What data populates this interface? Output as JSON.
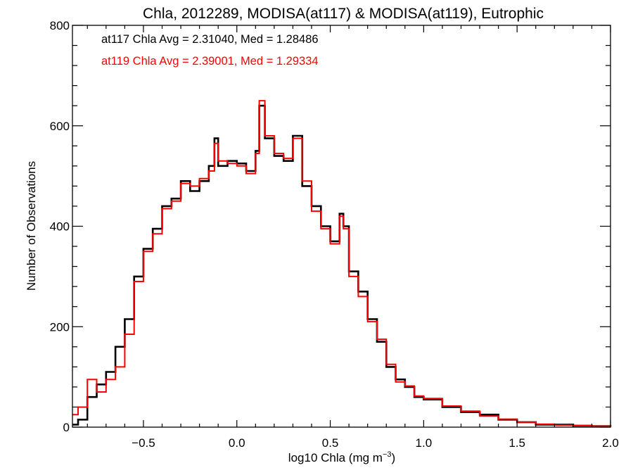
{
  "chart_data": {
    "type": "line",
    "title": "Chla, 2012289, MODISA(at117) & MODISA(at119), Eutrophic",
    "xlabel": "log10 Chla (mg m",
    "xlabel_sup": "−3",
    "xlabel_suffix": ")",
    "ylabel": "Number of Observations",
    "xlim": [
      -0.88,
      2.0
    ],
    "ylim": [
      0,
      800
    ],
    "xticks": [
      -0.5,
      0.0,
      0.5,
      1.0,
      1.5,
      2.0
    ],
    "xtick_labels": [
      "−0.5",
      "0.0",
      "0.5",
      "1.0",
      "1.5",
      "2.0"
    ],
    "yticks": [
      0,
      200,
      400,
      600,
      800
    ],
    "ytick_labels": [
      "0",
      "200",
      "400",
      "600",
      "800"
    ],
    "grid": false,
    "annotations": [
      {
        "text": "at117 Chla Avg = 2.31040, Med = 1.28486",
        "color": "#000000"
      },
      {
        "text": "at119 Chla Avg = 2.39001, Med = 1.29334",
        "color": "#ff0000"
      }
    ],
    "series": [
      {
        "color": "#000000",
        "x": [
          -0.88,
          -0.85,
          -0.8,
          -0.75,
          -0.7,
          -0.65,
          -0.6,
          -0.55,
          -0.5,
          -0.45,
          -0.4,
          -0.35,
          -0.3,
          -0.25,
          -0.2,
          -0.15,
          -0.12,
          -0.1,
          -0.05,
          0.0,
          0.05,
          0.1,
          0.12,
          0.15,
          0.2,
          0.25,
          0.3,
          0.35,
          0.4,
          0.45,
          0.5,
          0.55,
          0.57,
          0.6,
          0.65,
          0.7,
          0.75,
          0.8,
          0.85,
          0.9,
          0.95,
          1.0,
          1.1,
          1.2,
          1.3,
          1.4,
          1.5,
          1.6,
          1.7,
          1.8,
          1.9,
          2.0
        ],
        "values": [
          5,
          15,
          60,
          85,
          110,
          160,
          215,
          300,
          355,
          395,
          440,
          455,
          490,
          470,
          490,
          520,
          575,
          520,
          530,
          525,
          510,
          550,
          640,
          575,
          540,
          530,
          580,
          480,
          440,
          400,
          370,
          425,
          400,
          310,
          270,
          215,
          170,
          120,
          95,
          80,
          60,
          55,
          40,
          30,
          25,
          15,
          10,
          5,
          5,
          3,
          2,
          1
        ]
      },
      {
        "color": "#ff0000",
        "x": [
          -0.88,
          -0.85,
          -0.8,
          -0.75,
          -0.7,
          -0.65,
          -0.6,
          -0.55,
          -0.5,
          -0.45,
          -0.4,
          -0.35,
          -0.3,
          -0.25,
          -0.2,
          -0.15,
          -0.12,
          -0.1,
          -0.05,
          0.0,
          0.05,
          0.1,
          0.12,
          0.15,
          0.2,
          0.25,
          0.3,
          0.35,
          0.4,
          0.45,
          0.5,
          0.55,
          0.57,
          0.6,
          0.65,
          0.7,
          0.75,
          0.8,
          0.85,
          0.9,
          0.95,
          1.0,
          1.1,
          1.2,
          1.3,
          1.4,
          1.5,
          1.6,
          1.7,
          1.8,
          1.9,
          2.0
        ],
        "values": [
          25,
          40,
          95,
          70,
          95,
          120,
          185,
          290,
          350,
          385,
          435,
          450,
          485,
          480,
          495,
          510,
          565,
          530,
          525,
          520,
          505,
          545,
          650,
          580,
          545,
          535,
          575,
          490,
          430,
          395,
          365,
          420,
          395,
          300,
          260,
          210,
          175,
          125,
          90,
          82,
          62,
          57,
          42,
          32,
          22,
          16,
          10,
          6,
          4,
          3,
          2,
          1
        ]
      }
    ]
  }
}
